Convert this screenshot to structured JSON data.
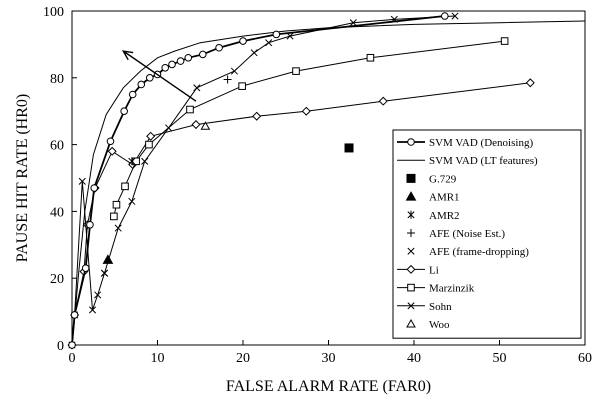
{
  "chart_data": {
    "type": "line",
    "xlabel": "FALSE ALARM RATE (FAR0)",
    "ylabel": "PAUSE HIT RATE (HR0)",
    "xlim": [
      0,
      60
    ],
    "ylim": [
      0,
      100
    ],
    "xticks": [
      0,
      10,
      20,
      30,
      40,
      50,
      60
    ],
    "yticks": [
      0,
      20,
      40,
      60,
      80,
      100
    ],
    "grid": false,
    "legend_position": "right",
    "annotation": "arrow pointing toward the upper-left",
    "series": [
      {
        "name": "SVM VAD (Denoising)",
        "marker": "circle",
        "line": "bold",
        "points": [
          [
            0,
            0
          ],
          [
            0.3,
            9
          ],
          [
            1.6,
            23
          ],
          [
            2.1,
            36
          ],
          [
            2.6,
            47
          ],
          [
            4.5,
            61
          ],
          [
            6.1,
            70
          ],
          [
            7.1,
            75
          ],
          [
            8.1,
            78
          ],
          [
            9.1,
            80
          ],
          [
            10.0,
            81
          ],
          [
            10.9,
            83
          ],
          [
            11.7,
            84
          ],
          [
            12.7,
            85
          ],
          [
            13.6,
            86
          ],
          [
            15.3,
            87
          ],
          [
            17.2,
            89
          ],
          [
            20.0,
            91
          ],
          [
            23.9,
            93
          ],
          [
            43.6,
            98.5
          ]
        ]
      },
      {
        "name": "SVM VAD (LT features)",
        "marker": "none",
        "line": "solid",
        "points": [
          [
            0,
            0
          ],
          [
            0.3,
            8
          ],
          [
            0.8,
            22
          ],
          [
            1.5,
            40
          ],
          [
            2.5,
            57
          ],
          [
            4,
            69
          ],
          [
            6,
            77
          ],
          [
            8,
            82
          ],
          [
            10,
            86
          ],
          [
            12,
            88
          ],
          [
            15,
            90.5
          ],
          [
            20,
            92.5
          ],
          [
            25,
            94
          ],
          [
            30,
            95
          ],
          [
            40,
            96
          ],
          [
            50,
            96.5
          ],
          [
            60,
            97
          ]
        ]
      },
      {
        "name": "G.729",
        "marker": "filled-square",
        "line": "none",
        "points": [
          [
            32.4,
            59
          ]
        ]
      },
      {
        "name": "AMR1",
        "marker": "filled-triangle",
        "line": "none",
        "points": [
          [
            4.2,
            25.5
          ]
        ]
      },
      {
        "name": "AMR2",
        "marker": "asterisk",
        "line": "none",
        "points": [
          [
            7.0,
            55
          ]
        ]
      },
      {
        "name": "AFE (Noise Est.)",
        "marker": "plus",
        "line": "none",
        "points": [
          [
            18.2,
            79.5
          ]
        ]
      },
      {
        "name": "AFE (frame-dropping)",
        "marker": "x",
        "line": "none",
        "points": [
          [
            3.8,
            21.5
          ]
        ]
      },
      {
        "name": "Li",
        "marker": "diamond",
        "line": "solid",
        "points": [
          [
            0,
            0
          ],
          [
            0.3,
            9
          ],
          [
            1.4,
            22
          ],
          [
            1.8,
            36
          ],
          [
            2.7,
            47
          ],
          [
            4.7,
            58
          ],
          [
            7.1,
            54
          ],
          [
            9.2,
            62.5
          ],
          [
            14.5,
            66
          ],
          [
            21.6,
            68.5
          ],
          [
            27.4,
            70
          ],
          [
            36.4,
            73
          ],
          [
            53.6,
            78.5
          ]
        ]
      },
      {
        "name": "Marzinzik",
        "marker": "square",
        "line": "solid",
        "points": [
          [
            4.9,
            38.5
          ],
          [
            5.2,
            42
          ],
          [
            6.2,
            47.5
          ],
          [
            7.5,
            55
          ],
          [
            9.0,
            60
          ],
          [
            13.8,
            70.5
          ],
          [
            19.9,
            77.5
          ],
          [
            26.2,
            82
          ],
          [
            34.9,
            86
          ],
          [
            50.6,
            91
          ]
        ]
      },
      {
        "name": "Sohn",
        "marker": "x",
        "line": "solid",
        "points": [
          [
            0,
            0
          ],
          [
            0.3,
            9
          ],
          [
            1.2,
            49
          ],
          [
            2.4,
            10.5
          ],
          [
            3.0,
            15
          ],
          [
            3.8,
            21.5
          ],
          [
            5.4,
            35
          ],
          [
            7.0,
            43
          ],
          [
            8.5,
            55
          ],
          [
            11.3,
            65
          ],
          [
            14.6,
            77
          ],
          [
            19.0,
            82
          ],
          [
            21.3,
            87.5
          ],
          [
            23.0,
            90.5
          ],
          [
            25.5,
            92.5
          ],
          [
            32.9,
            96.5
          ],
          [
            37.7,
            97.5
          ],
          [
            44.8,
            98.5
          ]
        ]
      },
      {
        "name": "Woo",
        "marker": "triangle",
        "line": "none",
        "points": [
          [
            15.6,
            65.5
          ]
        ]
      }
    ]
  }
}
